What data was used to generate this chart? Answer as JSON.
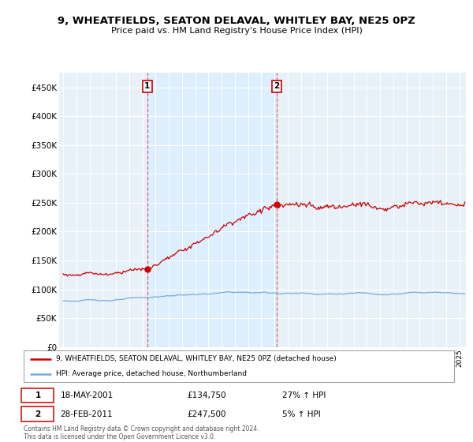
{
  "title": "9, WHEATFIELDS, SEATON DELAVAL, WHITLEY BAY, NE25 0PZ",
  "subtitle": "Price paid vs. HM Land Registry's House Price Index (HPI)",
  "ylabel_ticks": [
    "£0",
    "£50K",
    "£100K",
    "£150K",
    "£200K",
    "£250K",
    "£300K",
    "£350K",
    "£400K",
    "£450K"
  ],
  "ytick_values": [
    0,
    50000,
    100000,
    150000,
    200000,
    250000,
    300000,
    350000,
    400000,
    450000
  ],
  "ylim": [
    0,
    475000
  ],
  "xlim_start": 1994.7,
  "xlim_end": 2025.5,
  "sale1_x": 2001.38,
  "sale1_y": 134750,
  "sale1_label": "1",
  "sale2_x": 2011.17,
  "sale2_y": 247500,
  "sale2_label": "2",
  "legend_line1": "9, WHEATFIELDS, SEATON DELAVAL, WHITLEY BAY, NE25 0PZ (detached house)",
  "legend_line2": "HPI: Average price, detached house, Northumberland",
  "hpi_color": "#7aabdc",
  "property_color": "#cc0000",
  "vline_color": "#dd6666",
  "shade_color": "#ddeeff",
  "background_color": "#ffffff",
  "plot_bg_color": "#e8f0f8"
}
